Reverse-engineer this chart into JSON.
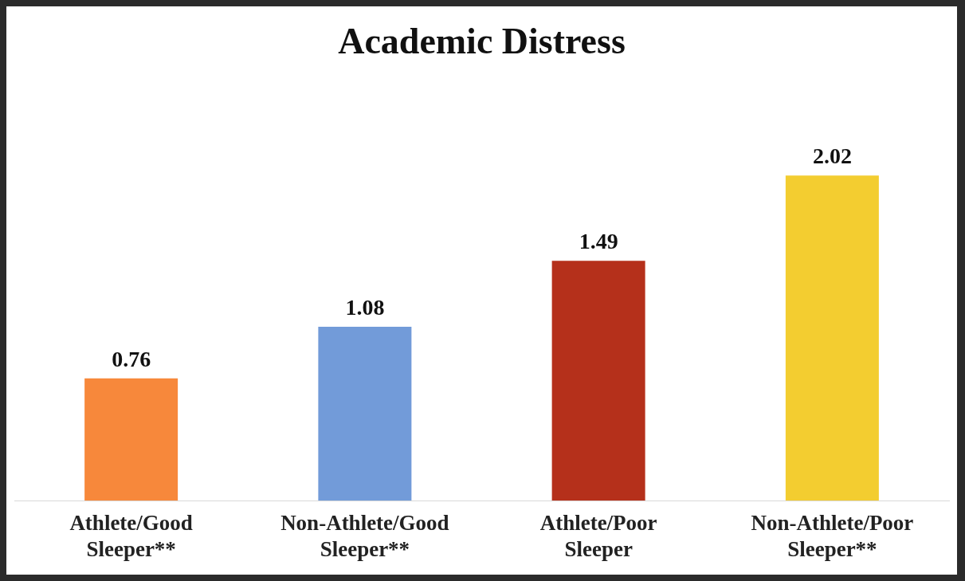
{
  "chart_data": {
    "type": "bar",
    "title": "Academic Distress",
    "categories": [
      "Athlete/Good Sleeper**",
      "Non-Athlete/Good Sleeper**",
      "Athlete/Poor Sleeper",
      "Non-Athlete/Poor Sleeper**"
    ],
    "values": [
      0.76,
      1.08,
      1.49,
      2.02
    ],
    "colors": [
      "#f7883b",
      "#729bd9",
      "#b5301b",
      "#f3cd30"
    ],
    "data_labels": true,
    "grid": false,
    "legend": false
  }
}
